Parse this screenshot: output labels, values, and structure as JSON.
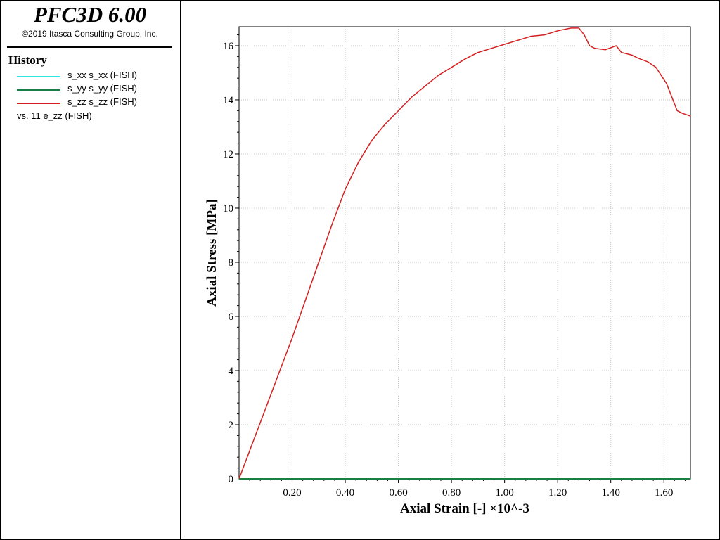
{
  "header": {
    "app_title": "PFC3D 6.00",
    "copyright": "©2019 Itasca Consulting Group, Inc."
  },
  "legend": {
    "title": "History",
    "vs_label": "vs. 11 e_zz (FISH)"
  },
  "chart_data": {
    "type": "line",
    "title": "",
    "xlabel": "Axial Strain [-] ×10^-3",
    "ylabel": "Axial Stress [MPa]",
    "xlim": [
      0,
      1.7
    ],
    "ylim": [
      0,
      16.7
    ],
    "x_ticks": [
      0.2,
      0.4,
      0.6,
      0.8,
      1.0,
      1.2,
      1.4,
      1.6
    ],
    "x_tick_labels": [
      "0.20",
      "0.40",
      "0.60",
      "0.80",
      "1.00",
      "1.20",
      "1.40",
      "1.60"
    ],
    "y_ticks": [
      0,
      2,
      4,
      6,
      8,
      10,
      12,
      14,
      16
    ],
    "y_tick_labels": [
      "0",
      "2",
      "4",
      "6",
      "8",
      "10",
      "12",
      "14",
      "16"
    ],
    "grid": true,
    "legend_position": "left-panel",
    "series": [
      {
        "name": "s_xx s_xx (FISH)",
        "color": "#33e6e6",
        "x": [
          0,
          1.7
        ],
        "y": [
          0,
          0
        ]
      },
      {
        "name": "s_yy s_yy (FISH)",
        "color": "#1a8040",
        "x": [
          0,
          1.7
        ],
        "y": [
          0,
          0
        ]
      },
      {
        "name": "s_zz s_zz (FISH)",
        "color": "#d42020",
        "x": [
          0,
          0.05,
          0.1,
          0.15,
          0.2,
          0.25,
          0.3,
          0.35,
          0.4,
          0.45,
          0.5,
          0.55,
          0.6,
          0.65,
          0.7,
          0.75,
          0.8,
          0.85,
          0.9,
          0.95,
          1.0,
          1.05,
          1.1,
          1.15,
          1.2,
          1.25,
          1.28,
          1.3,
          1.32,
          1.34,
          1.38,
          1.42,
          1.44,
          1.48,
          1.5,
          1.54,
          1.57,
          1.59,
          1.61,
          1.63,
          1.65,
          1.67,
          1.7
        ],
        "y": [
          0,
          1.3,
          2.6,
          3.9,
          5.2,
          6.6,
          8.0,
          9.4,
          10.7,
          11.7,
          12.5,
          13.1,
          13.6,
          14.1,
          14.5,
          14.9,
          15.2,
          15.5,
          15.75,
          15.9,
          16.05,
          16.2,
          16.35,
          16.4,
          16.55,
          16.65,
          16.65,
          16.4,
          16.0,
          15.9,
          15.85,
          16.0,
          15.75,
          15.65,
          15.55,
          15.4,
          15.2,
          14.9,
          14.6,
          14.1,
          13.6,
          13.5,
          13.4
        ]
      }
    ]
  }
}
